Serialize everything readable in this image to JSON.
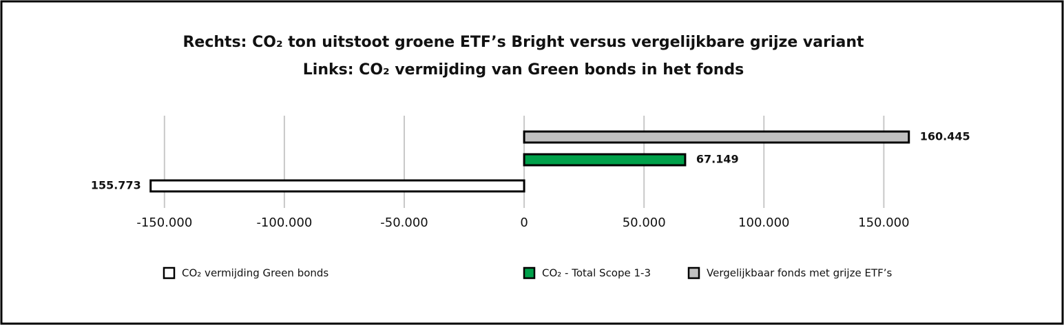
{
  "chart_data": {
    "type": "bar",
    "orientation": "horizontal",
    "title": [
      "Rechts: CO₂ ton uitstoot groene ETF’s Bright versus vergelijkbare grijze variant",
      "Links: CO₂ vermijding van Green bonds in het fonds"
    ],
    "categories": [
      null,
      null,
      null
    ],
    "series": [
      {
        "name": "CO₂ vermijding Green bonds",
        "color": "#ffffff",
        "values": [
          null,
          null,
          -155773
        ],
        "value_labels": [
          null,
          null,
          "155.773"
        ]
      },
      {
        "name": "CO₂ - Total Scope 1-3",
        "color": "#00a04a",
        "values": [
          null,
          67149,
          null
        ],
        "value_labels": [
          null,
          "67.149",
          null
        ]
      },
      {
        "name": "Vergelijkbaar fonds met grijze ETF’s",
        "color": "#c0c0c0",
        "values": [
          160445,
          null,
          null
        ],
        "value_labels": [
          "160.445",
          null,
          null
        ]
      }
    ],
    "xlim": [
      -160000,
      170000
    ],
    "xticks": [
      {
        "value": -150000,
        "label": "-150.000"
      },
      {
        "value": -100000,
        "label": "-100.000"
      },
      {
        "value": -50000,
        "label": "-50.000"
      },
      0,
      {
        "value": 50000,
        "label": "50.000"
      },
      {
        "value": 100000,
        "label": "100.000"
      },
      {
        "value": 150000,
        "label": "150.000"
      }
    ],
    "grid": true,
    "legend": "bottom"
  }
}
